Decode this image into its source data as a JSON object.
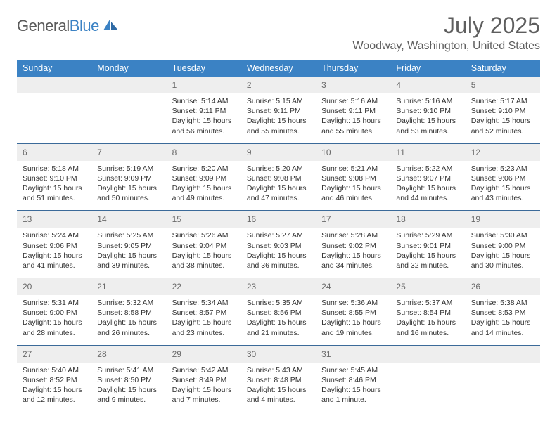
{
  "brand": {
    "part1": "General",
    "part2": "Blue"
  },
  "title": "July 2025",
  "location": "Woodway, Washington, United States",
  "colors": {
    "header_bg": "#3b82c4",
    "daynum_bg": "#eeeeee",
    "rule": "#3b6a99",
    "logo_gray": "#5b5b5b",
    "logo_blue": "#3b82c4",
    "text_muted": "#5e5e5e",
    "text_body": "#333333"
  },
  "fonts": {
    "month_size": 32,
    "location_size": 16,
    "dow_size": 12.5,
    "daynum_size": 12,
    "body_size": 10.5
  },
  "daysOfWeek": [
    "Sunday",
    "Monday",
    "Tuesday",
    "Wednesday",
    "Thursday",
    "Friday",
    "Saturday"
  ],
  "weeks": [
    [
      null,
      null,
      {
        "n": "1",
        "sunrise": "Sunrise: 5:14 AM",
        "sunset": "Sunset: 9:11 PM",
        "day1": "Daylight: 15 hours",
        "day2": "and 56 minutes."
      },
      {
        "n": "2",
        "sunrise": "Sunrise: 5:15 AM",
        "sunset": "Sunset: 9:11 PM",
        "day1": "Daylight: 15 hours",
        "day2": "and 55 minutes."
      },
      {
        "n": "3",
        "sunrise": "Sunrise: 5:16 AM",
        "sunset": "Sunset: 9:11 PM",
        "day1": "Daylight: 15 hours",
        "day2": "and 55 minutes."
      },
      {
        "n": "4",
        "sunrise": "Sunrise: 5:16 AM",
        "sunset": "Sunset: 9:10 PM",
        "day1": "Daylight: 15 hours",
        "day2": "and 53 minutes."
      },
      {
        "n": "5",
        "sunrise": "Sunrise: 5:17 AM",
        "sunset": "Sunset: 9:10 PM",
        "day1": "Daylight: 15 hours",
        "day2": "and 52 minutes."
      }
    ],
    [
      {
        "n": "6",
        "sunrise": "Sunrise: 5:18 AM",
        "sunset": "Sunset: 9:10 PM",
        "day1": "Daylight: 15 hours",
        "day2": "and 51 minutes."
      },
      {
        "n": "7",
        "sunrise": "Sunrise: 5:19 AM",
        "sunset": "Sunset: 9:09 PM",
        "day1": "Daylight: 15 hours",
        "day2": "and 50 minutes."
      },
      {
        "n": "8",
        "sunrise": "Sunrise: 5:20 AM",
        "sunset": "Sunset: 9:09 PM",
        "day1": "Daylight: 15 hours",
        "day2": "and 49 minutes."
      },
      {
        "n": "9",
        "sunrise": "Sunrise: 5:20 AM",
        "sunset": "Sunset: 9:08 PM",
        "day1": "Daylight: 15 hours",
        "day2": "and 47 minutes."
      },
      {
        "n": "10",
        "sunrise": "Sunrise: 5:21 AM",
        "sunset": "Sunset: 9:08 PM",
        "day1": "Daylight: 15 hours",
        "day2": "and 46 minutes."
      },
      {
        "n": "11",
        "sunrise": "Sunrise: 5:22 AM",
        "sunset": "Sunset: 9:07 PM",
        "day1": "Daylight: 15 hours",
        "day2": "and 44 minutes."
      },
      {
        "n": "12",
        "sunrise": "Sunrise: 5:23 AM",
        "sunset": "Sunset: 9:06 PM",
        "day1": "Daylight: 15 hours",
        "day2": "and 43 minutes."
      }
    ],
    [
      {
        "n": "13",
        "sunrise": "Sunrise: 5:24 AM",
        "sunset": "Sunset: 9:06 PM",
        "day1": "Daylight: 15 hours",
        "day2": "and 41 minutes."
      },
      {
        "n": "14",
        "sunrise": "Sunrise: 5:25 AM",
        "sunset": "Sunset: 9:05 PM",
        "day1": "Daylight: 15 hours",
        "day2": "and 39 minutes."
      },
      {
        "n": "15",
        "sunrise": "Sunrise: 5:26 AM",
        "sunset": "Sunset: 9:04 PM",
        "day1": "Daylight: 15 hours",
        "day2": "and 38 minutes."
      },
      {
        "n": "16",
        "sunrise": "Sunrise: 5:27 AM",
        "sunset": "Sunset: 9:03 PM",
        "day1": "Daylight: 15 hours",
        "day2": "and 36 minutes."
      },
      {
        "n": "17",
        "sunrise": "Sunrise: 5:28 AM",
        "sunset": "Sunset: 9:02 PM",
        "day1": "Daylight: 15 hours",
        "day2": "and 34 minutes."
      },
      {
        "n": "18",
        "sunrise": "Sunrise: 5:29 AM",
        "sunset": "Sunset: 9:01 PM",
        "day1": "Daylight: 15 hours",
        "day2": "and 32 minutes."
      },
      {
        "n": "19",
        "sunrise": "Sunrise: 5:30 AM",
        "sunset": "Sunset: 9:00 PM",
        "day1": "Daylight: 15 hours",
        "day2": "and 30 minutes."
      }
    ],
    [
      {
        "n": "20",
        "sunrise": "Sunrise: 5:31 AM",
        "sunset": "Sunset: 9:00 PM",
        "day1": "Daylight: 15 hours",
        "day2": "and 28 minutes."
      },
      {
        "n": "21",
        "sunrise": "Sunrise: 5:32 AM",
        "sunset": "Sunset: 8:58 PM",
        "day1": "Daylight: 15 hours",
        "day2": "and 26 minutes."
      },
      {
        "n": "22",
        "sunrise": "Sunrise: 5:34 AM",
        "sunset": "Sunset: 8:57 PM",
        "day1": "Daylight: 15 hours",
        "day2": "and 23 minutes."
      },
      {
        "n": "23",
        "sunrise": "Sunrise: 5:35 AM",
        "sunset": "Sunset: 8:56 PM",
        "day1": "Daylight: 15 hours",
        "day2": "and 21 minutes."
      },
      {
        "n": "24",
        "sunrise": "Sunrise: 5:36 AM",
        "sunset": "Sunset: 8:55 PM",
        "day1": "Daylight: 15 hours",
        "day2": "and 19 minutes."
      },
      {
        "n": "25",
        "sunrise": "Sunrise: 5:37 AM",
        "sunset": "Sunset: 8:54 PM",
        "day1": "Daylight: 15 hours",
        "day2": "and 16 minutes."
      },
      {
        "n": "26",
        "sunrise": "Sunrise: 5:38 AM",
        "sunset": "Sunset: 8:53 PM",
        "day1": "Daylight: 15 hours",
        "day2": "and 14 minutes."
      }
    ],
    [
      {
        "n": "27",
        "sunrise": "Sunrise: 5:40 AM",
        "sunset": "Sunset: 8:52 PM",
        "day1": "Daylight: 15 hours",
        "day2": "and 12 minutes."
      },
      {
        "n": "28",
        "sunrise": "Sunrise: 5:41 AM",
        "sunset": "Sunset: 8:50 PM",
        "day1": "Daylight: 15 hours",
        "day2": "and 9 minutes."
      },
      {
        "n": "29",
        "sunrise": "Sunrise: 5:42 AM",
        "sunset": "Sunset: 8:49 PM",
        "day1": "Daylight: 15 hours",
        "day2": "and 7 minutes."
      },
      {
        "n": "30",
        "sunrise": "Sunrise: 5:43 AM",
        "sunset": "Sunset: 8:48 PM",
        "day1": "Daylight: 15 hours",
        "day2": "and 4 minutes."
      },
      {
        "n": "31",
        "sunrise": "Sunrise: 5:45 AM",
        "sunset": "Sunset: 8:46 PM",
        "day1": "Daylight: 15 hours",
        "day2": "and 1 minute."
      },
      null,
      null
    ]
  ]
}
